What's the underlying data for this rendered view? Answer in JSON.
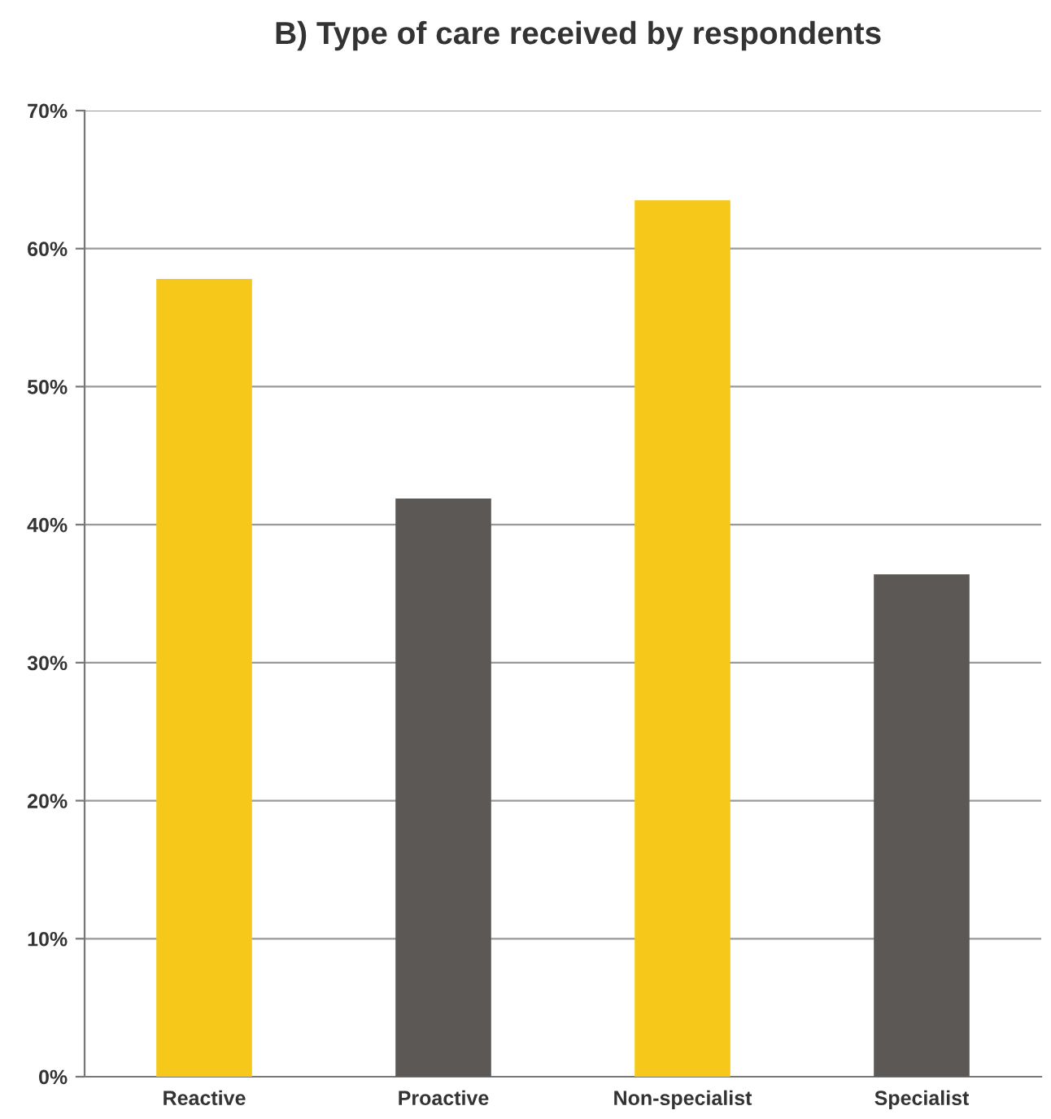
{
  "chart_data": {
    "type": "bar",
    "title": "B) Type of care received by respondents",
    "categories": [
      "Reactive",
      "Proactive",
      "Non-specialist",
      "Specialist"
    ],
    "values": [
      57.8,
      41.9,
      63.5,
      36.4
    ],
    "colors": [
      "#f5c81a",
      "#5b5855",
      "#f5c81a",
      "#5b5855"
    ],
    "ylim": [
      0,
      70
    ],
    "yticks": [
      {
        "value": 0,
        "label": "0%"
      },
      {
        "value": 10,
        "label": "10%"
      },
      {
        "value": 20,
        "label": "20%"
      },
      {
        "value": 30,
        "label": "30%"
      },
      {
        "value": 40,
        "label": "40%"
      },
      {
        "value": 50,
        "label": "50%"
      },
      {
        "value": 60,
        "label": "60%"
      },
      {
        "value": 70,
        "label": "70%"
      }
    ],
    "grid": "y"
  }
}
